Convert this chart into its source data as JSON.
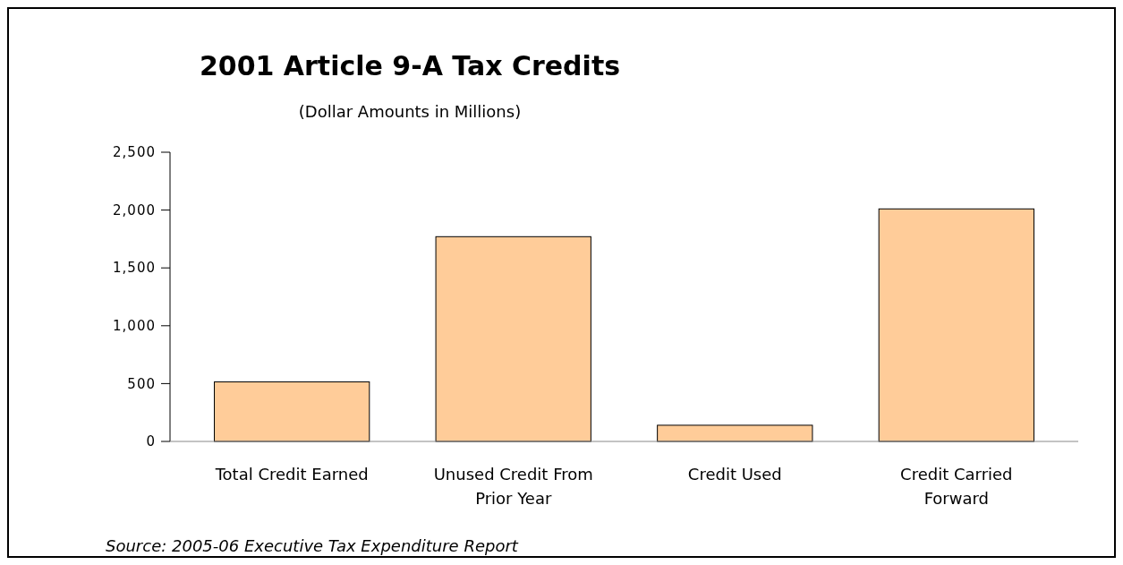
{
  "chart_data": {
    "type": "bar",
    "title": "2001 Article 9-A Tax Credits",
    "subtitle": "(Dollar Amounts in Millions)",
    "categories": [
      "Total Credit Earned",
      "Unused Credit From Prior Year",
      "Credit Used",
      "Credit Carried Forward"
    ],
    "values": [
      515,
      1770,
      140,
      2010
    ],
    "color": "#ffcc99",
    "ylim": [
      0,
      2500
    ],
    "yticks": [
      {
        "value": 0,
        "label": "0"
      },
      {
        "value": 500,
        "label": "500"
      },
      {
        "value": 1000,
        "label": "1,000"
      },
      {
        "value": 1500,
        "label": "1,500"
      },
      {
        "value": 2000,
        "label": "2,000"
      },
      {
        "value": 2500,
        "label": "2,500"
      }
    ],
    "grid": false,
    "annotations": [
      "Source: 2005-06 Executive Tax Expenditure Report"
    ]
  }
}
